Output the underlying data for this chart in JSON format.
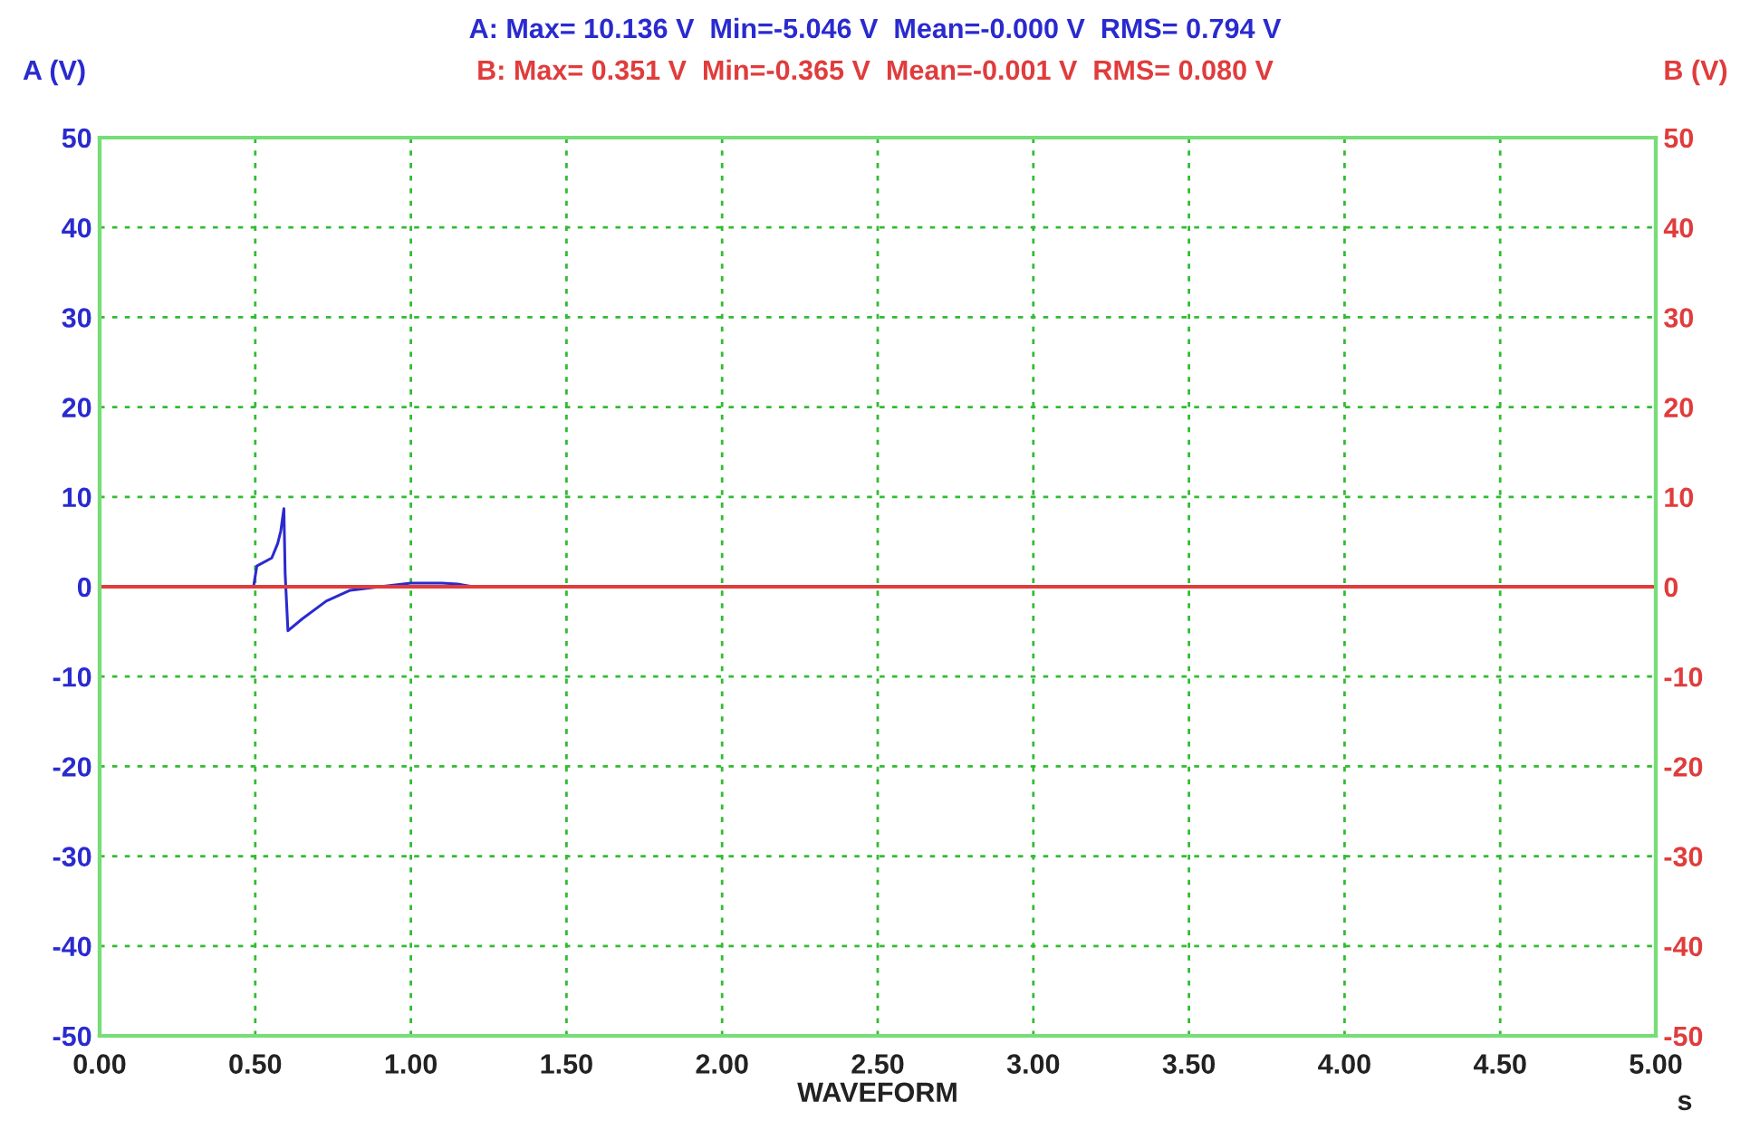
{
  "chart_data": {
    "type": "line",
    "title": "A: Max= 10.136 V  Min=-5.046 V  Mean=-0.000 V  RMS= 0.794 V",
    "subtitle": "B: Max= 0.351 V  Min=-0.365 V  Mean=-0.001 V  RMS= 0.080 V",
    "xlabel": "WAVEFORM",
    "ylabel": "A (V)",
    "y2label": "B (V)",
    "annotations": [
      "s"
    ],
    "series": [
      {
        "color": "#2a2ad0",
        "axis": "y",
        "x": [
          0,
          0.25,
          0.49,
          0.495,
          0.505,
          0.553,
          0.572,
          0.582,
          0.592,
          0.596,
          0.605,
          0.65,
          0.728,
          0.805,
          0.9,
          0.95,
          1.0,
          1.1,
          1.15,
          1.2,
          1.5
        ],
        "values": [
          0,
          0,
          0,
          0.1,
          2.3,
          3.2,
          4.8,
          6.2,
          8.7,
          1.5,
          -4.9,
          -3.6,
          -1.6,
          -0.4,
          0,
          0.2,
          0.4,
          0.4,
          0.3,
          0,
          0
        ]
      },
      {
        "color": "#e03c3c",
        "axis": "y2",
        "x": [
          0,
          0.5,
          1,
          1.5,
          2,
          2.5,
          3,
          3.5,
          4,
          4.5,
          5
        ],
        "values": [
          0,
          0,
          0,
          0,
          0,
          0,
          0,
          0,
          0,
          0,
          0
        ]
      }
    ],
    "xlim": [
      0,
      5
    ],
    "xticks": [
      {
        "value": 0,
        "label": "0.00"
      },
      {
        "value": 0.5,
        "label": "0.50"
      },
      {
        "value": 1,
        "label": "1.00"
      },
      {
        "value": 1.5,
        "label": "1.50"
      },
      {
        "value": 2,
        "label": "2.00"
      },
      {
        "value": 2.5,
        "label": "2.50"
      },
      {
        "value": 3,
        "label": "3.00"
      },
      {
        "value": 3.5,
        "label": "3.50"
      },
      {
        "value": 4,
        "label": "4.00"
      },
      {
        "value": 4.5,
        "label": "4.50"
      },
      {
        "value": 5,
        "label": "5.00"
      }
    ],
    "ylim": [
      -50,
      50
    ],
    "yticks": [
      -50,
      -40,
      -30,
      -20,
      -10,
      0,
      10,
      20,
      30,
      40,
      50
    ],
    "y2lim": [
      -50,
      50
    ],
    "y2ticks": [
      -50,
      -40,
      -30,
      -20,
      -10,
      0,
      10,
      20,
      30,
      40,
      50
    ],
    "grid": true,
    "line_style": "solid"
  }
}
